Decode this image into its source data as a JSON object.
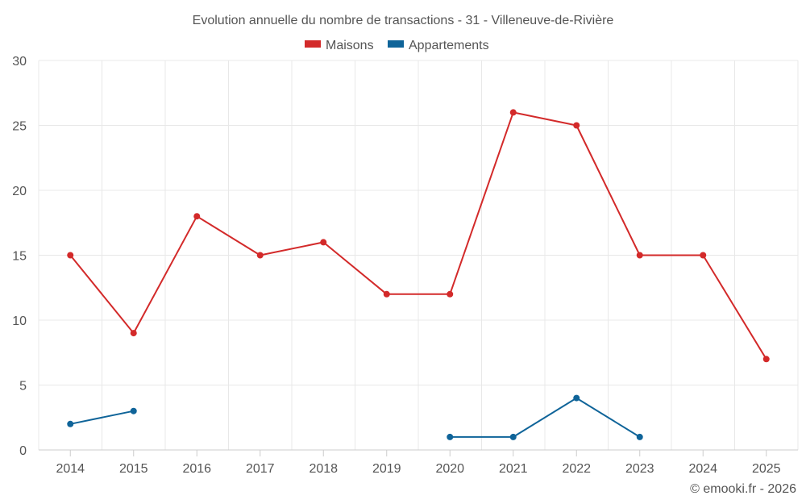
{
  "chart_data": {
    "type": "line",
    "title": "Evolution annuelle du nombre de transactions - 31 - Villeneuve-de-Rivière",
    "categories": [
      "2014",
      "2015",
      "2016",
      "2017",
      "2018",
      "2019",
      "2020",
      "2021",
      "2022",
      "2023",
      "2024",
      "2025"
    ],
    "series": [
      {
        "name": "Maisons",
        "color": "#d32a2a",
        "values": [
          15,
          9,
          18,
          15,
          16,
          12,
          12,
          26,
          25,
          15,
          15,
          7
        ]
      },
      {
        "name": "Appartements",
        "color": "#0f6499",
        "values": [
          2,
          3,
          null,
          null,
          null,
          null,
          1,
          1,
          4,
          1,
          null,
          null
        ]
      }
    ],
    "ylim": [
      0,
      30
    ],
    "yticks": [
      0,
      5,
      10,
      15,
      20,
      25,
      30
    ],
    "xlabel": "",
    "ylabel": "",
    "legend": "top-center",
    "grid": true
  },
  "credit": "© emooki.fr - 2026"
}
